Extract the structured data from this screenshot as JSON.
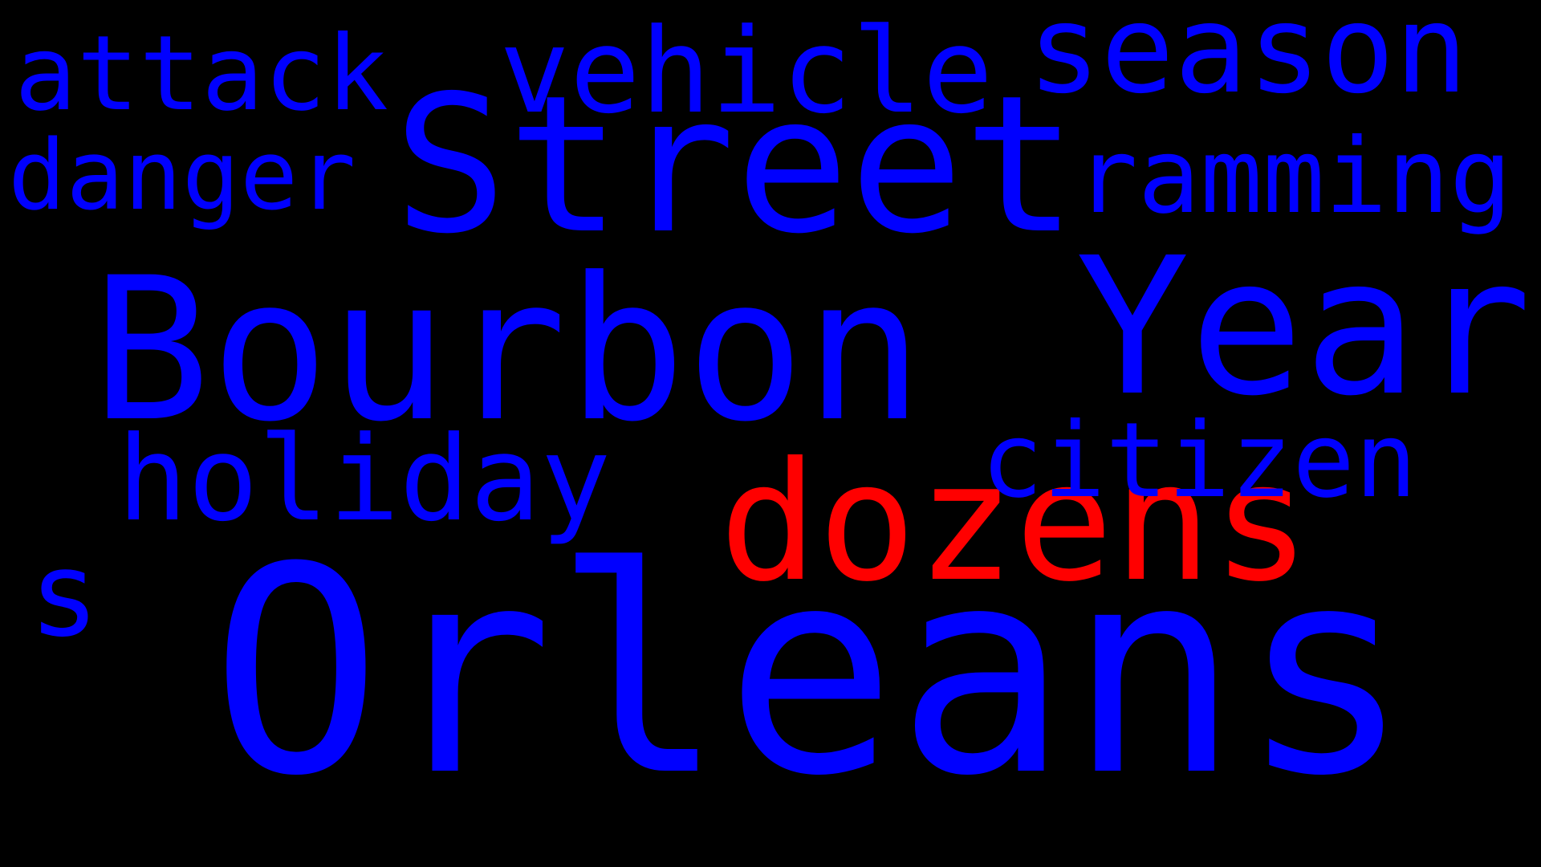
{
  "colors": {
    "background": "#000000",
    "primary": "#0000FF",
    "accent": "#FF0000"
  },
  "words": [
    {
      "id": "orleans",
      "text": "Orleans",
      "color": "#0000FF"
    },
    {
      "id": "bourbon",
      "text": "Bourbon",
      "color": "#0000FF"
    },
    {
      "id": "street",
      "text": "Street",
      "color": "#0000FF"
    },
    {
      "id": "year",
      "text": "Year",
      "color": "#0000FF"
    },
    {
      "id": "dozens",
      "text": "dozens",
      "color": "#FF0000"
    },
    {
      "id": "season",
      "text": "season",
      "color": "#0000FF"
    },
    {
      "id": "vehicle",
      "text": "vehicle",
      "color": "#0000FF"
    },
    {
      "id": "holiday",
      "text": "holiday",
      "color": "#0000FF"
    },
    {
      "id": "ramming",
      "text": "ramming",
      "color": "#0000FF"
    },
    {
      "id": "citizen",
      "text": "citizen",
      "color": "#0000FF"
    },
    {
      "id": "attack",
      "text": "attack",
      "color": "#0000FF"
    },
    {
      "id": "danger",
      "text": "danger",
      "color": "#0000FF"
    },
    {
      "id": "s",
      "text": "s",
      "color": "#0000FF"
    }
  ]
}
